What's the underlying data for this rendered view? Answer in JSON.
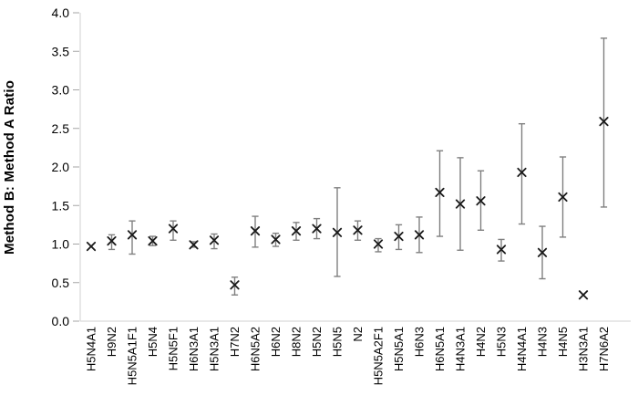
{
  "chart_data": {
    "type": "scatter",
    "ylabel": "Method B: Method A Ratio",
    "xlabel": "",
    "ylim": [
      0.0,
      4.0
    ],
    "ytick_labels": [
      "0.0",
      "0.5",
      "1.0",
      "1.5",
      "2.0",
      "2.5",
      "3.0",
      "3.5",
      "4.0"
    ],
    "grid": false,
    "legend": false,
    "marker": "x",
    "categories": [
      "H5N4A1",
      "H9N2",
      "H5N5A1F1",
      "H5N4",
      "H5N5F1",
      "H6N3A1",
      "H5N3A1",
      "H7N2",
      "H6N5A2",
      "H6N2",
      "H8N2",
      "H5N2",
      "H5N5",
      "N2",
      "H5N5A2F1",
      "H5N5A1",
      "H6N3",
      "H6N5A1",
      "H4N3A1",
      "H4N2",
      "H5N3",
      "H4N4A1",
      "H4N3",
      "H4N5",
      "H3N3A1",
      "H7N6A2"
    ],
    "series": [
      {
        "name": "Method B to Method A ratio",
        "values": [
          0.97,
          1.04,
          1.12,
          1.04,
          1.2,
          0.99,
          1.05,
          0.47,
          1.17,
          1.06,
          1.17,
          1.2,
          1.15,
          1.18,
          1.0,
          1.1,
          1.12,
          1.67,
          1.52,
          1.56,
          0.93,
          1.93,
          0.89,
          1.61,
          0.34,
          2.59
        ],
        "err_low": [
          0.97,
          0.93,
          0.87,
          0.98,
          1.05,
          0.96,
          0.94,
          0.34,
          0.96,
          0.97,
          1.05,
          1.07,
          0.58,
          1.05,
          0.9,
          0.93,
          0.89,
          1.1,
          0.92,
          1.18,
          0.78,
          1.26,
          0.55,
          1.09,
          0.34,
          1.48
        ],
        "err_high": [
          0.97,
          1.12,
          1.3,
          1.1,
          1.3,
          1.03,
          1.13,
          0.57,
          1.36,
          1.14,
          1.28,
          1.33,
          1.73,
          1.3,
          1.07,
          1.25,
          1.35,
          2.21,
          2.12,
          1.95,
          1.06,
          2.56,
          1.23,
          2.13,
          0.34,
          3.67
        ]
      }
    ],
    "colors": {
      "marker": "#1a1a1a",
      "error_bar": "#808080",
      "axis_line": "#d9d9d9",
      "tick_mark": "#a6a6a6",
      "text": "#000000"
    }
  }
}
